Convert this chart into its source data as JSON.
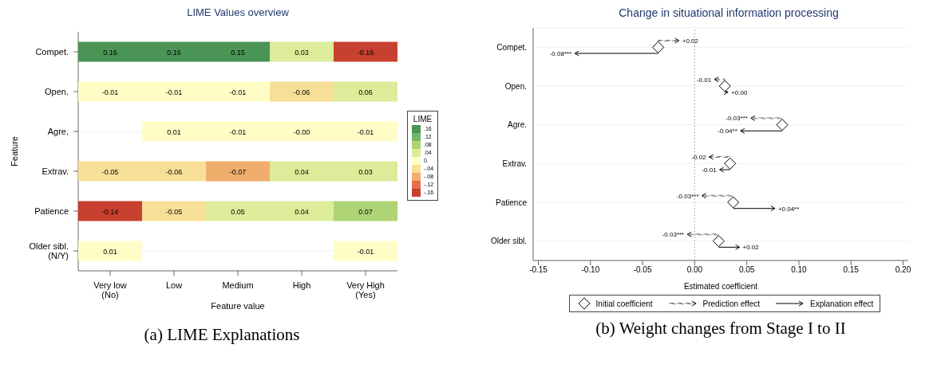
{
  "chart_data": [
    {
      "type": "heatmap",
      "title": "LIME Values overview",
      "xlabel": "Feature value",
      "ylabel": "Feature",
      "clabel": "LIME",
      "grid": "y",
      "categories": [
        "Very low\n(No)",
        "Low",
        "Medium",
        "High",
        "Very High\n(Yes)"
      ],
      "y_categories": [
        "Compet.",
        "Open.",
        "Agre.",
        "Extrav.",
        "Patience",
        "Older sibl.\n(N/Y)"
      ],
      "cells": [
        [
          0.16,
          0.16,
          0.15,
          0.03,
          -0.16
        ],
        [
          -0.01,
          -0.01,
          -0.01,
          -0.06,
          0.06
        ],
        [
          null,
          0.01,
          -0.01,
          -0.0,
          -0.01
        ],
        [
          -0.05,
          -0.06,
          -0.07,
          0.04,
          0.03
        ],
        [
          -0.14,
          -0.05,
          0.05,
          0.04,
          0.07
        ],
        [
          0.01,
          null,
          null,
          null,
          -0.01
        ]
      ],
      "cell_labels": [
        [
          "0.16",
          "0.16",
          "0.15",
          "0.03",
          "-0.16"
        ],
        [
          "-0.01",
          "-0.01",
          "-0.01",
          "-0.06",
          "0.06"
        ],
        [
          null,
          "0.01",
          "-0.01",
          "-0.00",
          "-0.01"
        ],
        [
          "-0.05",
          "-0.06",
          "-0.07",
          "0.04",
          "0.03"
        ],
        [
          "-0.14",
          "-0.05",
          "0.05",
          "0.04",
          "0.07"
        ],
        [
          "0.01",
          null,
          null,
          null,
          "-0.01"
        ]
      ],
      "cticks": [
        {
          "value": 0.16,
          "label": ".16"
        },
        {
          "value": 0.12,
          "label": ".12"
        },
        {
          "value": 0.08,
          "label": ".08"
        },
        {
          "value": 0.04,
          "label": ".04"
        },
        0,
        {
          "value": -0.04,
          "label": "-.04"
        },
        {
          "value": -0.08,
          "label": "-.08"
        },
        {
          "value": -0.12,
          "label": "-.12"
        },
        {
          "value": -0.16,
          "label": "-.16"
        }
      ],
      "colors": [
        "#4a9456",
        "#74b566",
        "#aed476",
        "#dcec9a",
        "#fffdc5",
        "#f8df97",
        "#f0ae6c",
        "#e3704a",
        "#c8402f"
      ],
      "annotations": [
        "(a) LIME Explanations"
      ]
    },
    {
      "type": "scatter",
      "title": "Change in situational information processing",
      "xlabel": "Estimated coefficient",
      "orientation": "horizontal",
      "grid": "y",
      "legend": "bottom",
      "categories": [
        "Compet.",
        "Open.",
        "Agre.",
        "Extrav.",
        "Patience",
        "Older sibl."
      ],
      "xlim": [
        -0.155,
        0.205
      ],
      "xticks": [
        {
          "value": -0.15,
          "label": "-0.15"
        },
        {
          "value": -0.1,
          "label": "-0.10"
        },
        {
          "value": -0.05,
          "label": "-0.05"
        },
        {
          "value": 0,
          "label": "0.00"
        },
        {
          "value": 0.05,
          "label": "0.05"
        },
        {
          "value": 0.1,
          "label": "0.10"
        },
        {
          "value": 0.15,
          "label": "0.15"
        },
        {
          "value": 0.2,
          "label": "0.20"
        }
      ],
      "ref_lines": [
        {
          "axis": "x",
          "value": 0,
          "line_style": "dotted",
          "color": "#999999"
        }
      ],
      "series": [
        {
          "name": "Initial coefficient",
          "type": "scatter",
          "marker": "diamond",
          "color": "#000000",
          "values": [
            -0.035,
            0.029,
            0.084,
            0.034,
            0.037,
            0.023
          ]
        },
        {
          "name": "Prediction effect",
          "type": "bar",
          "line_style": "dashed",
          "color": "#000000",
          "base": [
            -0.035,
            0.029,
            0.084,
            0.034,
            0.037,
            0.023
          ],
          "values": [
            0.02,
            -0.01,
            -0.03,
            -0.02,
            -0.03,
            -0.03
          ],
          "value_labels": [
            "+0.02",
            "-0.01",
            "-0.03***",
            "-0.02",
            "-0.03***",
            "-0.03***"
          ]
        },
        {
          "name": "Explanation effect",
          "type": "bar",
          "line_style": "solid",
          "color": "#000000",
          "base": [
            -0.035,
            0.029,
            0.084,
            0.034,
            0.037,
            0.023
          ],
          "values": [
            -0.08,
            0.003,
            -0.04,
            -0.01,
            0.04,
            0.02
          ],
          "value_labels": [
            "-0.08***",
            "+0.00",
            "-0.04**",
            "-0.01",
            "+0.04**",
            "+0.02"
          ]
        }
      ],
      "annotations": [
        "(b) Weight changes from Stage I to II"
      ]
    }
  ]
}
